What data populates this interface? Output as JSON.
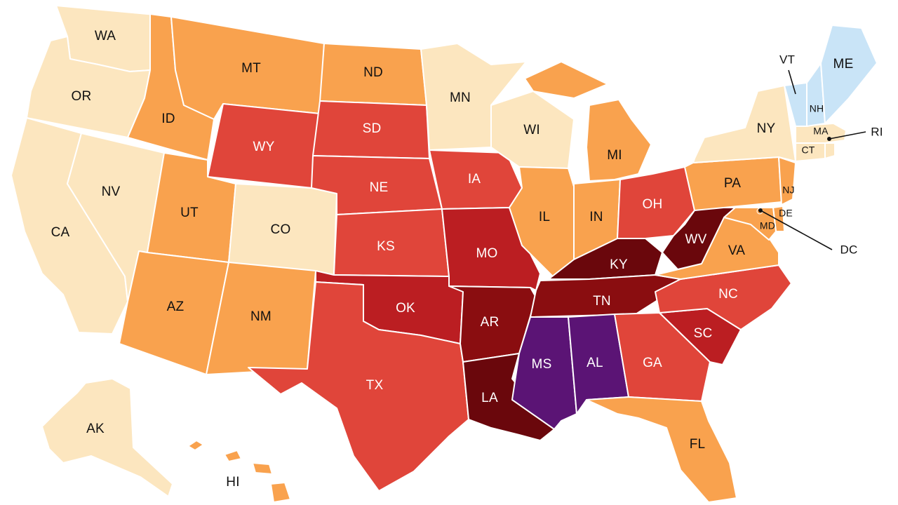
{
  "map": {
    "colors": {
      "cream": "#FCE6BF",
      "light_blue": "#C9E4F7",
      "orange": "#F9A24E",
      "red": "#E0453A",
      "dark_red": "#BB1E22",
      "maroon": "#8A0D10",
      "deep_maroon": "#6A070C",
      "purple": "#5B1475"
    },
    "states": [
      {
        "abbr": "WA",
        "color": "cream"
      },
      {
        "abbr": "OR",
        "color": "cream"
      },
      {
        "abbr": "CA",
        "color": "cream"
      },
      {
        "abbr": "NV",
        "color": "cream"
      },
      {
        "abbr": "ID",
        "color": "orange"
      },
      {
        "abbr": "MT",
        "color": "orange"
      },
      {
        "abbr": "WY",
        "color": "red"
      },
      {
        "abbr": "UT",
        "color": "orange"
      },
      {
        "abbr": "CO",
        "color": "cream"
      },
      {
        "abbr": "AZ",
        "color": "orange"
      },
      {
        "abbr": "NM",
        "color": "orange"
      },
      {
        "abbr": "ND",
        "color": "orange"
      },
      {
        "abbr": "SD",
        "color": "red"
      },
      {
        "abbr": "NE",
        "color": "red"
      },
      {
        "abbr": "KS",
        "color": "red"
      },
      {
        "abbr": "OK",
        "color": "dark_red"
      },
      {
        "abbr": "TX",
        "color": "red"
      },
      {
        "abbr": "MN",
        "color": "cream"
      },
      {
        "abbr": "IA",
        "color": "red"
      },
      {
        "abbr": "MO",
        "color": "dark_red"
      },
      {
        "abbr": "AR",
        "color": "maroon"
      },
      {
        "abbr": "LA",
        "color": "deep_maroon"
      },
      {
        "abbr": "WI",
        "color": "cream"
      },
      {
        "abbr": "IL",
        "color": "orange"
      },
      {
        "abbr": "MI",
        "color": "orange"
      },
      {
        "abbr": "IN",
        "color": "orange"
      },
      {
        "abbr": "OH",
        "color": "red"
      },
      {
        "abbr": "KY",
        "color": "deep_maroon"
      },
      {
        "abbr": "TN",
        "color": "maroon"
      },
      {
        "abbr": "MS",
        "color": "purple"
      },
      {
        "abbr": "AL",
        "color": "purple"
      },
      {
        "abbr": "GA",
        "color": "red"
      },
      {
        "abbr": "FL",
        "color": "orange"
      },
      {
        "abbr": "SC",
        "color": "dark_red"
      },
      {
        "abbr": "NC",
        "color": "red"
      },
      {
        "abbr": "VA",
        "color": "orange"
      },
      {
        "abbr": "WV",
        "color": "deep_maroon"
      },
      {
        "abbr": "PA",
        "color": "orange"
      },
      {
        "abbr": "NY",
        "color": "cream"
      },
      {
        "abbr": "NJ",
        "color": "orange"
      },
      {
        "abbr": "DE",
        "color": "orange"
      },
      {
        "abbr": "MD",
        "color": "orange"
      },
      {
        "abbr": "DC",
        "color": "orange"
      },
      {
        "abbr": "CT",
        "color": "cream"
      },
      {
        "abbr": "RI",
        "color": "cream"
      },
      {
        "abbr": "MA",
        "color": "cream"
      },
      {
        "abbr": "VT",
        "color": "light_blue"
      },
      {
        "abbr": "NH",
        "color": "light_blue"
      },
      {
        "abbr": "ME",
        "color": "light_blue"
      },
      {
        "abbr": "AK",
        "color": "cream"
      },
      {
        "abbr": "HI",
        "color": "orange"
      }
    ]
  }
}
